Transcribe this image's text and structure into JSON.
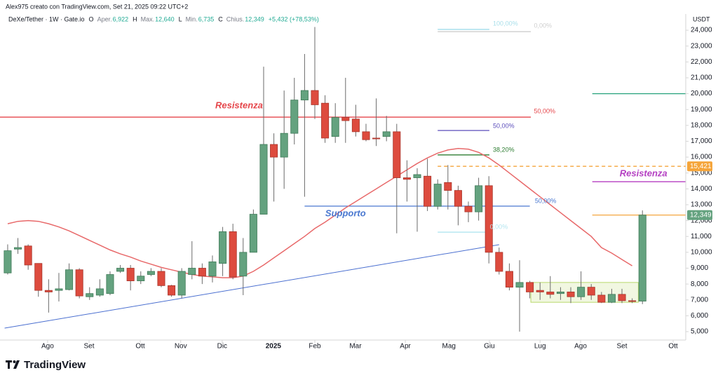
{
  "chart_data": {
    "type": "candlestick",
    "credit": "Alex975 creato con TradingView.com, Set 21, 2025 09:22 UTC+2",
    "symbol": "DeXe/Tether · 1W · Gate.io",
    "ohlc_header": [
      {
        "key": "O",
        "label": "Aper.",
        "value": "6,922"
      },
      {
        "key": "H",
        "label": "Max.",
        "value": "12,640"
      },
      {
        "key": "L",
        "label": "Min.",
        "value": "6,735"
      },
      {
        "key": "C",
        "label": "Chius.",
        "value": "12,349"
      }
    ],
    "change": "+5,432 (+78,53%)",
    "currency": "USDT",
    "brand": "TradingView",
    "up_color": "#64a27f",
    "down_color": "#dd4b3e",
    "open": [
      8.7,
      10.2,
      10.4,
      9.3,
      7.6,
      7.6,
      7.65,
      8.9,
      7.2,
      7.3,
      7.4,
      8.8,
      9.0,
      8.2,
      8.6,
      8.8,
      7.9,
      7.3,
      8.6,
      9.0,
      8.5,
      9.3,
      11.3,
      8.5,
      10.0,
      12.4,
      16.8,
      16.0,
      17.5,
      19.6,
      20.2,
      19.4,
      17.3,
      18.5,
      18.4,
      17.6,
      17.2,
      17.3,
      17.6,
      14.7,
      14.7,
      14.8,
      12.9,
      14.4,
      13.9,
      12.9,
      12.55,
      14.2,
      10.0,
      8.8,
      7.8,
      8.1,
      7.6,
      7.5,
      7.4,
      7.5,
      7.2,
      7.8,
      7.3,
      6.85,
      7.35,
      6.95,
      6.922
    ],
    "high": [
      10.5,
      10.9,
      10.5,
      9.3,
      8.3,
      8.7,
      9.3,
      9.0,
      7.8,
      8.3,
      8.8,
      9.2,
      9.2,
      8.8,
      9.0,
      9.0,
      7.95,
      9.0,
      10.7,
      9.3,
      9.8,
      11.6,
      11.8,
      10.9,
      12.7,
      21.7,
      17.5,
      20.2,
      21.0,
      22.5,
      24.2,
      19.9,
      19.4,
      21.0,
      19.3,
      18.1,
      19.7,
      18.6,
      18.1,
      15.8,
      15.3,
      15.9,
      14.6,
      15.5,
      14.2,
      13.2,
      14.7,
      14.8,
      10.3,
      9.3,
      9.5,
      8.2,
      8.1,
      8.5,
      7.8,
      7.8,
      8.8,
      8.0,
      7.5,
      7.7,
      7.7,
      7.1,
      12.64
    ],
    "low": [
      8.6,
      9.9,
      8.9,
      7.2,
      6.2,
      6.9,
      7.6,
      7.1,
      7.0,
      7.2,
      7.3,
      8.7,
      7.6,
      8.0,
      8.5,
      7.8,
      7.2,
      7.1,
      8.3,
      8.0,
      8.1,
      8.5,
      8.3,
      7.3,
      10.0,
      12.4,
      13.2,
      14.0,
      16.8,
      13.5,
      18.4,
      16.9,
      16.9,
      16.9,
      17.3,
      17.0,
      16.7,
      17.0,
      11.2,
      13.2,
      11.3,
      12.6,
      12.7,
      12.7,
      11.7,
      11.9,
      12.0,
      9.3,
      8.6,
      7.6,
      5.0,
      7.1,
      7.0,
      7.1,
      7.0,
      6.8,
      7.0,
      7.0,
      6.8,
      6.8,
      6.8,
      6.8,
      6.735
    ],
    "close": [
      10.1,
      10.3,
      9.2,
      7.6,
      7.5,
      7.7,
      8.9,
      7.25,
      7.4,
      7.7,
      8.6,
      9.0,
      8.2,
      8.5,
      8.8,
      7.9,
      7.3,
      8.8,
      9.0,
      8.5,
      9.4,
      11.3,
      8.45,
      10.0,
      12.4,
      16.8,
      16.0,
      17.5,
      19.6,
      20.2,
      19.3,
      17.2,
      18.5,
      18.3,
      17.6,
      17.1,
      17.15,
      17.6,
      14.7,
      14.6,
      14.9,
      12.9,
      14.3,
      13.9,
      12.9,
      12.55,
      14.2,
      10.0,
      8.8,
      7.8,
      8.1,
      7.5,
      7.5,
      7.35,
      7.5,
      7.2,
      7.8,
      7.3,
      6.85,
      7.35,
      6.95,
      6.9,
      12.349
    ],
    "moving_average": {
      "color": "#e8696a",
      "values": [
        11.8,
        11.95,
        12.0,
        11.95,
        11.8,
        11.6,
        11.35,
        11.05,
        10.75,
        10.45,
        10.15,
        9.9,
        9.7,
        9.45,
        9.25,
        9.05,
        8.9,
        8.75,
        8.6,
        8.5,
        8.45,
        8.4,
        8.4,
        8.5,
        8.8,
        9.2,
        9.65,
        10.1,
        10.55,
        11.0,
        11.5,
        11.9,
        12.35,
        12.8,
        13.2,
        13.6,
        14.0,
        14.4,
        14.8,
        15.2,
        15.6,
        15.95,
        16.25,
        16.45,
        16.55,
        16.5,
        16.3,
        15.95,
        15.5,
        15.0,
        14.5,
        14.0,
        13.5,
        13.0,
        12.5,
        12.0,
        11.5,
        11.0,
        10.3,
        9.95,
        9.55,
        9.15,
        null
      ]
    },
    "xlim": [
      -0.75,
      66.23
    ],
    "ylim": [
      4.47,
      25.02
    ],
    "xticks": [
      {
        "value": 3.9,
        "label": "Ago"
      },
      {
        "value": 7.95,
        "label": "Set"
      },
      {
        "value": 12.95,
        "label": "Ott"
      },
      {
        "value": 16.9,
        "label": "Nov"
      },
      {
        "value": 20.95,
        "label": "Dic"
      },
      {
        "value": 25.95,
        "label": "2025"
      },
      {
        "value": 30.0,
        "label": "Feb"
      },
      {
        "value": 33.97,
        "label": "Mar"
      },
      {
        "value": 38.84,
        "label": "Apr"
      },
      {
        "value": 43.1,
        "label": "Mag"
      },
      {
        "value": 47.05,
        "label": "Giu"
      },
      {
        "value": 52.0,
        "label": "Lug"
      },
      {
        "value": 55.96,
        "label": "Ago"
      },
      {
        "value": 60.0,
        "label": "Set"
      },
      {
        "value": 65.0,
        "label": "Ott"
      }
    ],
    "yticks": [
      {
        "value": 5,
        "label": "5,000"
      },
      {
        "value": 6,
        "label": "6,000"
      },
      {
        "value": 7,
        "label": "7,000"
      },
      {
        "value": 8,
        "label": "8,000"
      },
      {
        "value": 9,
        "label": "9,000"
      },
      {
        "value": 10,
        "label": "10,000"
      },
      {
        "value": 11,
        "label": "11,000"
      },
      {
        "value": 12,
        "label": "12,000"
      },
      {
        "value": 13,
        "label": "13,000"
      },
      {
        "value": 14,
        "label": "14,000"
      },
      {
        "value": 15,
        "label": "15,000"
      },
      {
        "value": 16,
        "label": "16,000"
      },
      {
        "value": 17,
        "label": "17,000"
      },
      {
        "value": 18,
        "label": "18,000"
      },
      {
        "value": 19,
        "label": "19,000"
      },
      {
        "value": 20,
        "label": "20,000"
      },
      {
        "value": 21,
        "label": "21,000"
      },
      {
        "value": 22,
        "label": "22,000"
      },
      {
        "value": 23,
        "label": "23,000"
      },
      {
        "value": 24,
        "label": "24,000"
      }
    ],
    "price_labels": [
      {
        "value": 15.421,
        "label": "15,421",
        "color": "#f5a53b"
      },
      {
        "value": 12.349,
        "label": "12,349",
        "color": "#64a27f"
      }
    ],
    "levels": [
      {
        "price": 18.52,
        "from": -0.75,
        "to": 51.1,
        "color": "#e5454a"
      },
      {
        "price": 12.91,
        "from": 29,
        "to": 51,
        "color": "#4a78d0"
      },
      {
        "price": 24.05,
        "from": 42,
        "to": 47.05,
        "color": "#9fdcea"
      },
      {
        "price": 23.91,
        "from": 42,
        "to": 51.1,
        "color": "#c9c9c9"
      },
      {
        "price": 17.68,
        "from": 42,
        "to": 47.05,
        "color": "#5b4dbb"
      },
      {
        "price": 16.14,
        "from": 42,
        "to": 47.05,
        "color": "#2e7d32"
      },
      {
        "price": 11.27,
        "from": 42,
        "to": 47.05,
        "color": "#a8e3ef"
      },
      {
        "price": 15.421,
        "from": 42,
        "to": 66.23,
        "color": "#f5a53b",
        "dashed": true
      },
      {
        "price": 12.349,
        "from": 57.1,
        "to": 66.23,
        "color": "#f5a53b"
      },
      {
        "price": 20.0,
        "from": 57.1,
        "to": 66.23,
        "color": "#26a17b"
      },
      {
        "price": 14.45,
        "from": 57.1,
        "to": 66.23,
        "color": "#b43fc2"
      }
    ],
    "trendline": {
      "from": [
        -0.3,
        5.22
      ],
      "to": [
        48,
        10.48
      ],
      "color": "#4a6fd0"
    },
    "range_box": {
      "from": 51.1,
      "to": 61.6,
      "low": 6.85,
      "high": 8.1,
      "color": "#b8d86a"
    },
    "annotations": [
      {
        "text": "Resistenza",
        "index": 22.6,
        "price": 19.23,
        "color": "#e5454a",
        "big": true
      },
      {
        "text": "50,00%",
        "index": 51.4,
        "price": 18.88,
        "color": "#e5454a"
      },
      {
        "text": "Supporto",
        "index": 33,
        "price": 12.42,
        "color": "#4a78d0",
        "big": true
      },
      {
        "text": "50,00%",
        "index": 51.5,
        "price": 13.22,
        "color": "#4a78d0"
      },
      {
        "text": "100,00%",
        "index": 47.4,
        "price": 24.4,
        "color": "#a8dfea"
      },
      {
        "text": "0,00%",
        "index": 51.4,
        "price": 24.27,
        "color": "#cfcfcf"
      },
      {
        "text": "50,00%",
        "index": 47.4,
        "price": 17.95,
        "color": "#5b4dbb"
      },
      {
        "text": "38,20%",
        "index": 47.4,
        "price": 16.45,
        "color": "#2e7d32"
      },
      {
        "text": "0,00%",
        "index": 47.1,
        "price": 11.58,
        "color": "#b5e6f0"
      },
      {
        "text": "Resistenza",
        "index": 62.1,
        "price": 14.94,
        "color": "#b43fc2",
        "big": true
      }
    ]
  }
}
